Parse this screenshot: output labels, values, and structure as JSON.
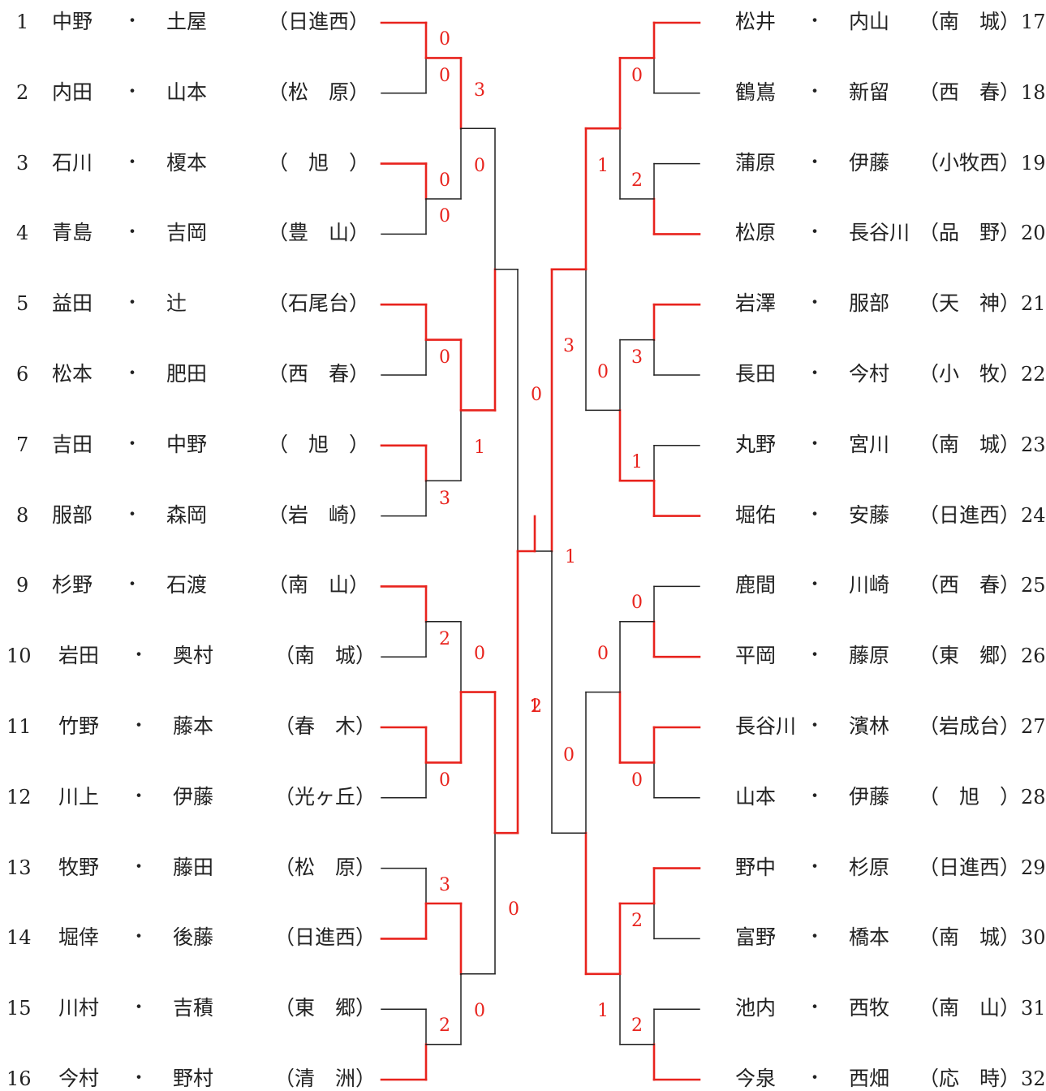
{
  "colors": {
    "winner": "#e8231d",
    "loser": "#222222",
    "text": "#222222"
  },
  "separator": "・",
  "left_entries": [
    {
      "no": "1",
      "p1": "中野",
      "p2": "土屋",
      "school": "（日進西）"
    },
    {
      "no": "2",
      "p1": "内田",
      "p2": "山本",
      "school": "（松　原）"
    },
    {
      "no": "3",
      "p1": "石川",
      "p2": "榎本",
      "school": "（　旭　）"
    },
    {
      "no": "4",
      "p1": "青島",
      "p2": "吉岡",
      "school": "（豊　山）"
    },
    {
      "no": "5",
      "p1": "益田",
      "p2": "辻",
      "school": "（石尾台）"
    },
    {
      "no": "6",
      "p1": "松本",
      "p2": "肥田",
      "school": "（西　春）"
    },
    {
      "no": "7",
      "p1": "吉田",
      "p2": "中野",
      "school": "（　旭　）"
    },
    {
      "no": "8",
      "p1": "服部",
      "p2": "森岡",
      "school": "（岩　崎）"
    },
    {
      "no": "9",
      "p1": "杉野",
      "p2": "石渡",
      "school": "（南　山）"
    },
    {
      "no": "10",
      "p1": "岩田",
      "p2": "奥村",
      "school": "（南　城）"
    },
    {
      "no": "11",
      "p1": "竹野",
      "p2": "藤本",
      "school": "（春　木）"
    },
    {
      "no": "12",
      "p1": "川上",
      "p2": "伊藤",
      "school": "（光ヶ丘）"
    },
    {
      "no": "13",
      "p1": "牧野",
      "p2": "藤田",
      "school": "（松　原）"
    },
    {
      "no": "14",
      "p1": "堀倖",
      "p2": "後藤",
      "school": "（日進西）"
    },
    {
      "no": "15",
      "p1": "川村",
      "p2": "吉積",
      "school": "（東　郷）"
    },
    {
      "no": "16",
      "p1": "今村",
      "p2": "野村",
      "school": "（清　洲）"
    }
  ],
  "right_entries": [
    {
      "no": "17",
      "p1": "松井",
      "p2": "内山",
      "school": "（南　城）"
    },
    {
      "no": "18",
      "p1": "鶴嶌",
      "p2": "新留",
      "school": "（西　春）"
    },
    {
      "no": "19",
      "p1": "蒲原",
      "p2": "伊藤",
      "school": "（小牧西）"
    },
    {
      "no": "20",
      "p1": "松原",
      "p2": "長谷川",
      "school": "（品　野）"
    },
    {
      "no": "21",
      "p1": "岩澤",
      "p2": "服部",
      "school": "（天　神）"
    },
    {
      "no": "22",
      "p1": "長田",
      "p2": "今村",
      "school": "（小　牧）"
    },
    {
      "no": "23",
      "p1": "丸野",
      "p2": "宮川",
      "school": "（南　城）"
    },
    {
      "no": "24",
      "p1": "堀佑",
      "p2": "安藤",
      "school": "（日進西）"
    },
    {
      "no": "25",
      "p1": "鹿間",
      "p2": "川崎",
      "school": "（西　春）"
    },
    {
      "no": "26",
      "p1": "平岡",
      "p2": "藤原",
      "school": "（東　郷）"
    },
    {
      "no": "27",
      "p1": "長谷川",
      "p2": "濱林",
      "school": "（岩成台）"
    },
    {
      "no": "28",
      "p1": "山本",
      "p2": "伊藤",
      "school": "（　旭　）"
    },
    {
      "no": "29",
      "p1": "野中",
      "p2": "杉原",
      "school": "（日進西）"
    },
    {
      "no": "30",
      "p1": "富野",
      "p2": "橋本",
      "school": "（南　城）"
    },
    {
      "no": "31",
      "p1": "池内",
      "p2": "西牧",
      "school": "（南　山）"
    },
    {
      "no": "32",
      "p1": "今泉",
      "p2": "西畑",
      "school": "（応　時）"
    }
  ],
  "left_r1": [
    {
      "top": "0",
      "bot": "0",
      "win": "top"
    },
    {
      "top": "0",
      "bot": "0",
      "win": "top"
    },
    {
      "top": "",
      "bot": "0",
      "win": "top"
    },
    {
      "top": "",
      "bot": "3",
      "win": "top"
    },
    {
      "top": "",
      "bot": "2",
      "win": "top"
    },
    {
      "top": "",
      "bot": "0",
      "win": "top"
    },
    {
      "top": "3",
      "bot": "",
      "win": "bot"
    },
    {
      "top": "2",
      "bot": "",
      "win": "bot"
    }
  ],
  "left_r2": [
    {
      "top": "3",
      "bot": "0",
      "win": "top"
    },
    {
      "top": "",
      "bot": "1",
      "win": "top"
    },
    {
      "top": "0",
      "bot": "",
      "win": "bot"
    },
    {
      "top": "",
      "bot": "0",
      "win": "top"
    }
  ],
  "left_r3": [
    {
      "top": "",
      "bot": "",
      "win": "bot"
    },
    {
      "top": "",
      "bot": "0",
      "win": "top"
    }
  ],
  "left_r4": [
    {
      "top": "0",
      "bot": "2",
      "win": "bot"
    }
  ],
  "right_r1": [
    {
      "top": "",
      "bot": "0",
      "win": "top"
    },
    {
      "top": "2",
      "bot": "",
      "win": "bot"
    },
    {
      "top": "",
      "bot": "3",
      "win": "top"
    },
    {
      "top": "1",
      "bot": "",
      "win": "bot"
    },
    {
      "top": "0",
      "bot": "",
      "win": "bot"
    },
    {
      "top": "",
      "bot": "0",
      "win": "top"
    },
    {
      "top": "",
      "bot": "2",
      "win": "top"
    },
    {
      "top": "2",
      "bot": "",
      "win": "bot"
    }
  ],
  "right_r2": [
    {
      "top": "",
      "bot": "1",
      "win": "top"
    },
    {
      "top": "0",
      "bot": "",
      "win": "bot"
    },
    {
      "top": "0",
      "bot": "",
      "win": "bot"
    },
    {
      "top": "",
      "bot": "1",
      "win": "top"
    }
  ],
  "right_r3": [
    {
      "top": "",
      "bot": "3",
      "win": "top"
    },
    {
      "top": "0",
      "bot": "",
      "win": "bot"
    }
  ],
  "right_r4": [
    {
      "top": "",
      "bot": "1",
      "win": "top"
    }
  ],
  "final": {
    "score": "1",
    "winner": "left"
  }
}
